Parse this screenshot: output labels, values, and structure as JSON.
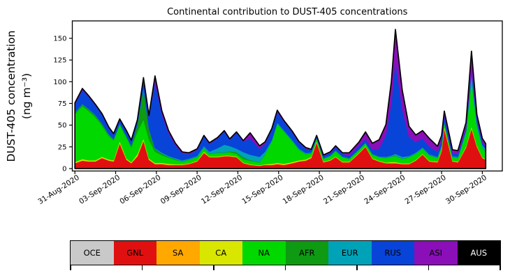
{
  "chart": {
    "title": "Continental contribution to DUST-405 concentrations",
    "ylabel_line1": "DUST-405 concentration",
    "ylabel_line2": "(ng m⁻³)"
  },
  "chart_data": {
    "type": "area",
    "stacked": true,
    "title": "Continental contribution to DUST-405 concentrations",
    "xlabel": "",
    "ylabel": "DUST-405 concentration (ng m⁻³)",
    "grid": false,
    "legend_position": "bottom-strip",
    "y_ticks": [
      0,
      25,
      50,
      75,
      100,
      125,
      150
    ],
    "ylim": [
      -2.5,
      170
    ],
    "x_tick_labels": [
      "31-Aug-2020",
      "03-Sep-2020",
      "06-Sep-2020",
      "09-Sep-2020",
      "12-Sep-2020",
      "15-Sep-2020",
      "18-Sep-2020",
      "21-Sep-2020",
      "24-Sep-2020",
      "27-Sep-2020",
      "30-Sep-2020"
    ],
    "x_tick_step_days": 3,
    "x_unit": "days since 31-Aug-2020",
    "t": [
      0,
      0.55,
      1,
      1.5,
      2,
      2.5,
      2.85,
      3.3,
      3.8,
      4.15,
      4.6,
      5.05,
      5.45,
      5.9,
      6.4,
      6.9,
      7.4,
      7.9,
      8.4,
      9,
      9.5,
      9.9,
      10.5,
      11,
      11.4,
      11.9,
      12.4,
      12.9,
      13.6,
      14,
      14.5,
      14.9,
      15.4,
      16,
      16.5,
      17,
      17.4,
      17.8,
      18.3,
      18.8,
      19.2,
      19.7,
      20.2,
      20.9,
      21.4,
      21.9,
      22.4,
      22.9,
      23.3,
      23.6,
      24.1,
      24.6,
      25.1,
      25.6,
      26.1,
      26.7,
      27,
      27.2,
      27.8,
      28.2,
      28.8,
      29.2,
      29.6,
      30,
      30.25
    ],
    "series": [
      {
        "name": "OCE",
        "color": "#c9c9c9",
        "constant": 0.2
      },
      {
        "name": "GNL",
        "color": "#e01010",
        "values": [
          6,
          9,
          8,
          8,
          12,
          9,
          8,
          29,
          10,
          6,
          14,
          32,
          10,
          5,
          5,
          4,
          4,
          4,
          5,
          8,
          18,
          13,
          13,
          14,
          14,
          13,
          6,
          4,
          3,
          4,
          4,
          5,
          4,
          6,
          8,
          9,
          12,
          30,
          7,
          9,
          13,
          7,
          7,
          17,
          25,
          11,
          8,
          6,
          6,
          6,
          5,
          5,
          9,
          16,
          8,
          7,
          20,
          46,
          8,
          7,
          24,
          46,
          25,
          12,
          10
        ]
      },
      {
        "name": "SA",
        "color": "#ffa800",
        "constant": 0.3
      },
      {
        "name": "CA",
        "color": "#d9e600",
        "values": [
          1,
          1.5,
          1,
          1,
          1,
          1,
          1,
          2,
          1,
          1,
          2,
          2,
          1,
          1,
          1,
          1,
          0.5,
          0.5,
          0.5,
          0.5,
          1,
          0.5,
          0.5,
          0.5,
          0.5,
          0.5,
          0.5,
          0.5,
          0.5,
          0.5,
          1,
          1,
          1,
          1,
          1,
          1,
          1,
          1,
          0.5,
          0.5,
          0.5,
          0.5,
          0.5,
          0.5,
          0.5,
          0.5,
          0.5,
          0.5,
          1,
          1,
          0.5,
          0.5,
          0.5,
          0.5,
          0.5,
          0.5,
          1,
          2,
          0.5,
          0.5,
          1,
          2,
          1,
          0.5,
          0.5
        ]
      },
      {
        "name": "NA",
        "color": "#00d800",
        "values": [
          55,
          61,
          57,
          50,
          36,
          27,
          23,
          19,
          24,
          17,
          26,
          22,
          22,
          13,
          9,
          7,
          5,
          3,
          4,
          4,
          4,
          3,
          4,
          3,
          4,
          3,
          4,
          4,
          3,
          11,
          26,
          45,
          37,
          24,
          12,
          6,
          4,
          3,
          3,
          4,
          6,
          5,
          3,
          3,
          3,
          4,
          4,
          5,
          6,
          7,
          5,
          7,
          7,
          6,
          6,
          4,
          4,
          4,
          4,
          4,
          16,
          53,
          22,
          11,
          8
        ]
      },
      {
        "name": "AFR",
        "color": "#0e9a12",
        "values": [
          2,
          2,
          2,
          2,
          2,
          1.5,
          1,
          1,
          1.5,
          1.5,
          8,
          36,
          12,
          3,
          2,
          1,
          1,
          0.5,
          0.5,
          0.5,
          0.5,
          0.5,
          0.5,
          0.5,
          1,
          2,
          2,
          1,
          0.5,
          0.5,
          0.5,
          0.5,
          0.5,
          0.5,
          0.5,
          0.5,
          0.5,
          0.5,
          0.5,
          0.5,
          0.5,
          0.5,
          0.5,
          0.5,
          0.5,
          0.5,
          0.5,
          0.5,
          0.5,
          0.5,
          0.5,
          0.5,
          0.5,
          0.5,
          0.5,
          0.5,
          0.5,
          0.5,
          0.5,
          0.5,
          0.5,
          0.5,
          0.5,
          0.5,
          0.5
        ]
      },
      {
        "name": "EUR",
        "color": "#00a2b8",
        "values": [
          0.5,
          0.5,
          0.5,
          0.5,
          0.5,
          0.5,
          0.5,
          0.5,
          0.5,
          0.5,
          0.5,
          1,
          0.5,
          1,
          1,
          1,
          1,
          1,
          1,
          1,
          2,
          2,
          5,
          9,
          6,
          4,
          6,
          6,
          6,
          3,
          1,
          1,
          1,
          1,
          1,
          1,
          0.5,
          0.5,
          0.5,
          0.5,
          0.5,
          0.5,
          0.5,
          0.5,
          0.5,
          0.5,
          0.5,
          1,
          1,
          2,
          2,
          1,
          1,
          1,
          1,
          1,
          1,
          1,
          1,
          1,
          2,
          7,
          4,
          3,
          3
        ]
      },
      {
        "name": "RUS",
        "color": "#0844d8",
        "values": [
          9,
          16,
          14,
          11,
          10,
          7,
          5,
          4,
          5,
          5,
          4,
          8,
          13,
          76,
          44,
          26,
          15,
          8,
          5,
          7,
          11,
          9,
          11,
          15,
          7,
          18,
          12,
          19,
          9,
          9,
          12,
          12,
          10,
          9,
          7,
          5,
          3,
          2,
          3,
          3,
          4,
          3,
          3,
          4,
          4,
          5,
          9,
          25,
          60,
          107,
          55,
          22,
          12,
          10,
          9,
          6,
          6,
          7,
          4,
          3,
          3,
          6,
          4,
          3,
          2
        ]
      },
      {
        "name": "ASI",
        "color": "#8a0fb8",
        "values": [
          1.5,
          1.5,
          1,
          1,
          1,
          1,
          1,
          1,
          1,
          1,
          1,
          3,
          2,
          7,
          4,
          3,
          2,
          1.5,
          1.5,
          1,
          1,
          1,
          1,
          1,
          1,
          1,
          1,
          6,
          3.5,
          2,
          1,
          2,
          1,
          1,
          1,
          1,
          0.5,
          0.5,
          0.5,
          1,
          1,
          1,
          3,
          4,
          8,
          7,
          10,
          12,
          25,
          36,
          22,
          12,
          8,
          9,
          9,
          6,
          5,
          5,
          3,
          4,
          6,
          20,
          5,
          4,
          4
        ]
      },
      {
        "name": "AUS",
        "color": "#000000",
        "constant": 0.2
      }
    ]
  },
  "legend": {
    "tick_count": 7,
    "items": [
      {
        "label": "OCE",
        "color": "#c9c9c9",
        "text_color": "#000000"
      },
      {
        "label": "GNL",
        "color": "#e01010",
        "text_color": "#000000"
      },
      {
        "label": "SA",
        "color": "#ffa800",
        "text_color": "#000000"
      },
      {
        "label": "CA",
        "color": "#d9e600",
        "text_color": "#000000"
      },
      {
        "label": "NA",
        "color": "#00d800",
        "text_color": "#000000"
      },
      {
        "label": "AFR",
        "color": "#0e9a12",
        "text_color": "#000000"
      },
      {
        "label": "EUR",
        "color": "#00a2b8",
        "text_color": "#000000"
      },
      {
        "label": "RUS",
        "color": "#0844d8",
        "text_color": "#000000"
      },
      {
        "label": "ASI",
        "color": "#8a0fb8",
        "text_color": "#000000"
      },
      {
        "label": "AUS",
        "color": "#000000",
        "text_color": "#ffffff"
      }
    ]
  }
}
